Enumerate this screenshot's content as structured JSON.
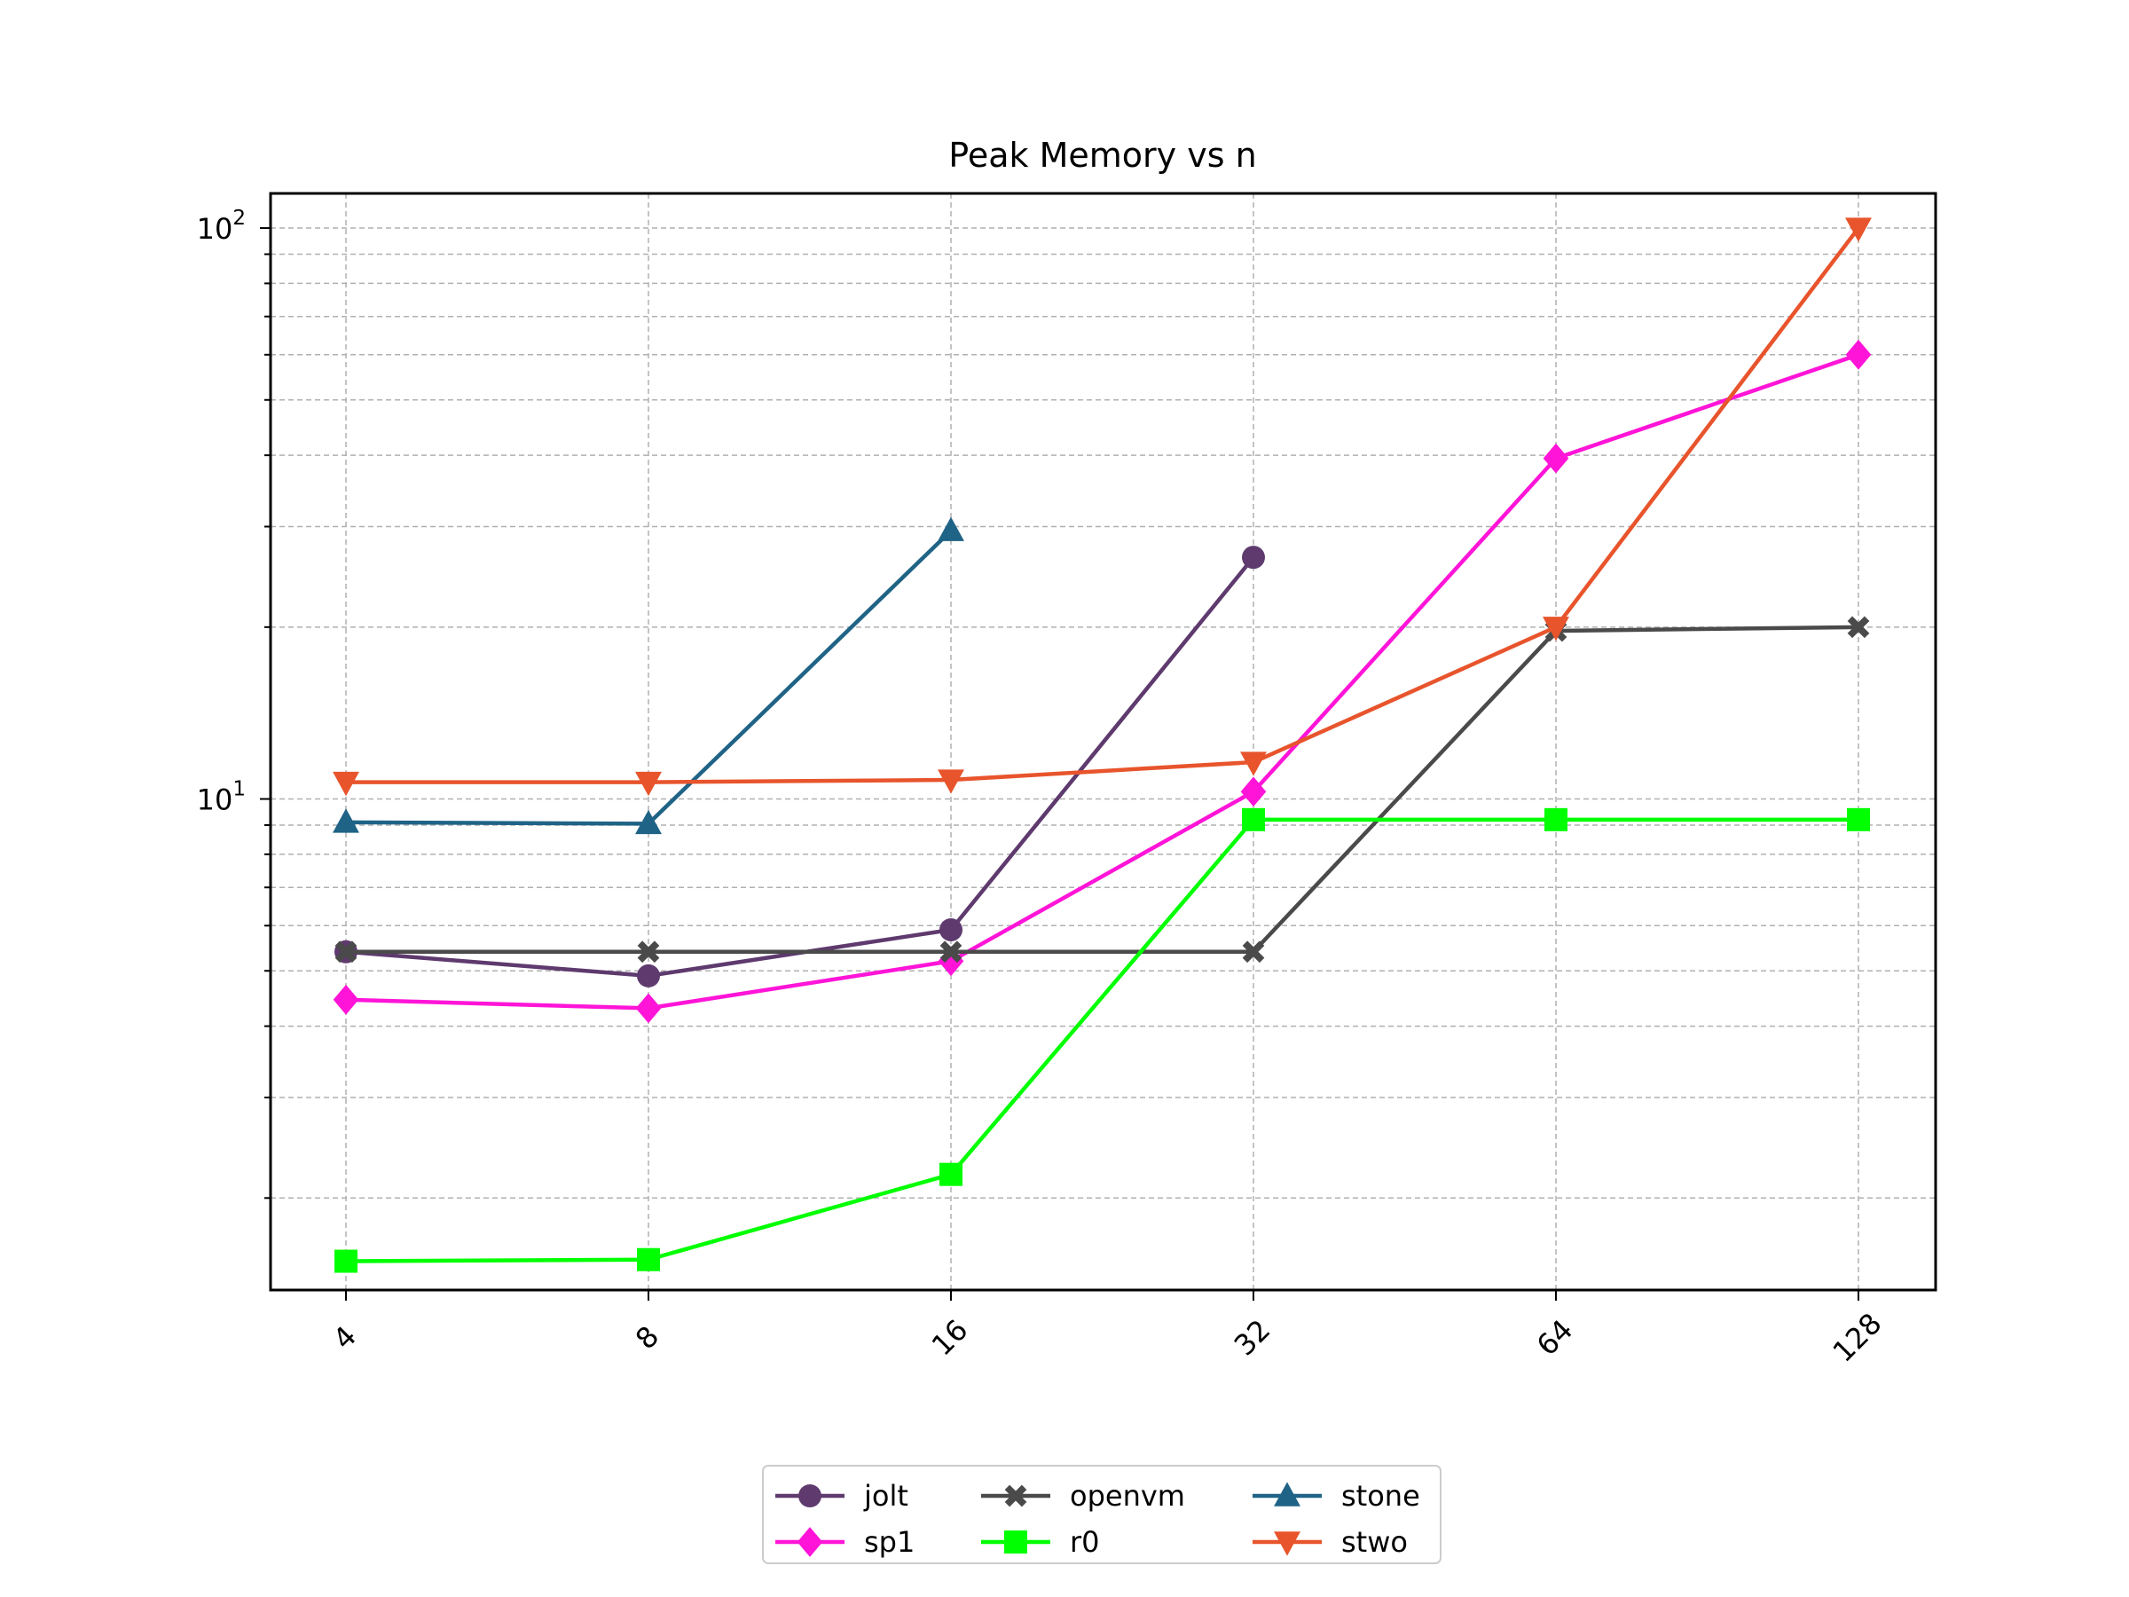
{
  "chart_data": {
    "type": "line",
    "title": "Peak Memory vs n",
    "xlabel": "",
    "ylabel": "",
    "x_scale": "log2",
    "y_scale": "log",
    "categories": [
      "4",
      "8",
      "16",
      "32",
      "64",
      "128"
    ],
    "x": [
      4,
      8,
      16,
      32,
      64,
      128
    ],
    "y_ticks": [
      {
        "base": "10",
        "exp": "1",
        "value": 10
      },
      {
        "base": "10",
        "exp": "2",
        "value": 100
      }
    ],
    "ylim": [
      1.38,
      115
    ],
    "grid": "on",
    "legend_position": "bottom-center",
    "series": [
      {
        "name": "jolt",
        "color": "#5e3a6e",
        "marker": "circle",
        "values": [
          5.4,
          4.9,
          5.9,
          26.5,
          null,
          null
        ]
      },
      {
        "name": "sp1",
        "color": "#ff14d8",
        "marker": "diamond",
        "values": [
          4.45,
          4.3,
          5.2,
          10.3,
          39.5,
          60
        ]
      },
      {
        "name": "openvm",
        "color": "#4a4a4a",
        "marker": "x",
        "values": [
          5.4,
          5.4,
          5.4,
          5.4,
          19.7,
          20
        ]
      },
      {
        "name": "r0",
        "color": "#00ff00",
        "marker": "square",
        "values": [
          1.55,
          1.56,
          2.2,
          9.2,
          9.2,
          9.2
        ]
      },
      {
        "name": "stone",
        "color": "#1f6386",
        "marker": "triangle-up",
        "values": [
          9.1,
          9.05,
          29.5,
          null,
          null,
          null
        ]
      },
      {
        "name": "stwo",
        "color": "#e8542c",
        "marker": "triangle-down",
        "values": [
          10.7,
          10.7,
          10.8,
          11.6,
          20,
          100
        ]
      }
    ]
  }
}
